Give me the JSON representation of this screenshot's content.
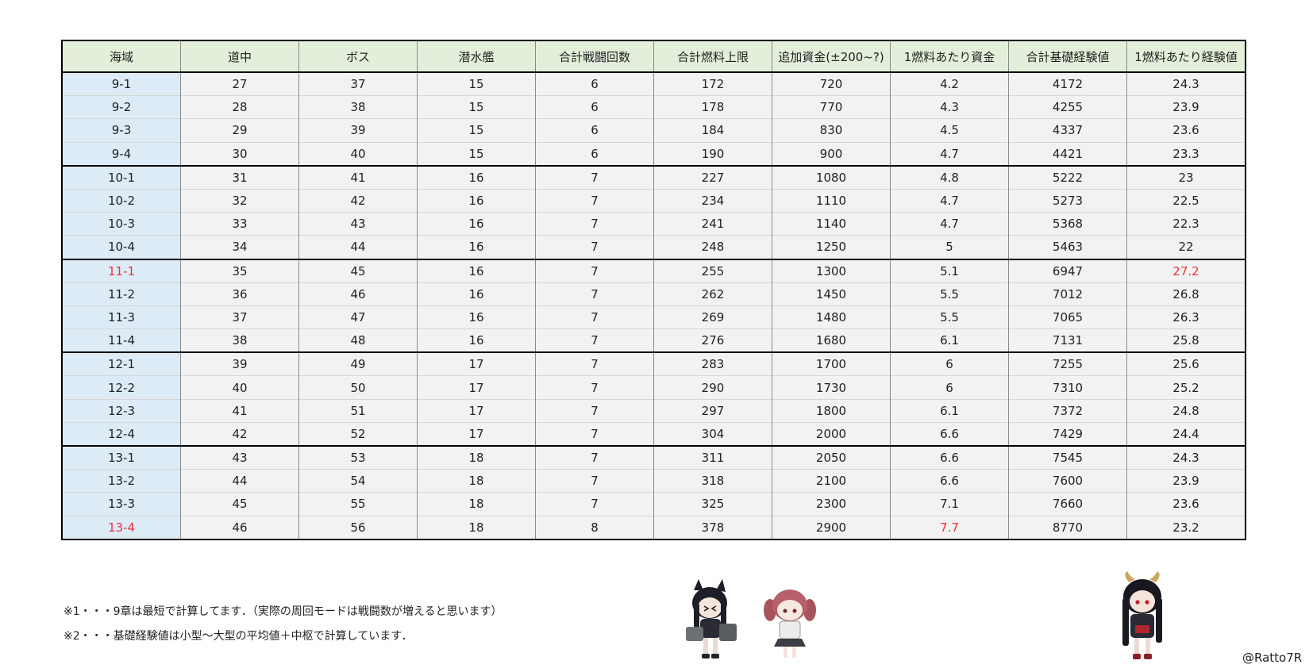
{
  "table": {
    "headers": [
      "海域",
      "道中",
      "ボス",
      "潜水艦",
      "合計戦闘回数",
      "合計燃料上限",
      "追加資金(±200~?)",
      "1燃料あたり資金",
      "合計基礎経験値",
      "1燃料あたり経験値"
    ],
    "rows": [
      [
        "9-1",
        "27",
        "37",
        "15",
        "6",
        "172",
        "720",
        "4.2",
        "4172",
        "24.3"
      ],
      [
        "9-2",
        "28",
        "38",
        "15",
        "6",
        "178",
        "770",
        "4.3",
        "4255",
        "23.9"
      ],
      [
        "9-3",
        "29",
        "39",
        "15",
        "6",
        "184",
        "830",
        "4.5",
        "4337",
        "23.6"
      ],
      [
        "9-4",
        "30",
        "40",
        "15",
        "6",
        "190",
        "900",
        "4.7",
        "4421",
        "23.3"
      ],
      [
        "10-1",
        "31",
        "41",
        "16",
        "7",
        "227",
        "1080",
        "4.8",
        "5222",
        "23"
      ],
      [
        "10-2",
        "32",
        "42",
        "16",
        "7",
        "234",
        "1110",
        "4.7",
        "5273",
        "22.5"
      ],
      [
        "10-3",
        "33",
        "43",
        "16",
        "7",
        "241",
        "1140",
        "4.7",
        "5368",
        "22.3"
      ],
      [
        "10-4",
        "34",
        "44",
        "16",
        "7",
        "248",
        "1250",
        "5",
        "5463",
        "22"
      ],
      [
        "11-1",
        "35",
        "45",
        "16",
        "7",
        "255",
        "1300",
        "5.1",
        "6947",
        "27.2"
      ],
      [
        "11-2",
        "36",
        "46",
        "16",
        "7",
        "262",
        "1450",
        "5.5",
        "7012",
        "26.8"
      ],
      [
        "11-3",
        "37",
        "47",
        "16",
        "7",
        "269",
        "1480",
        "5.5",
        "7065",
        "26.3"
      ],
      [
        "11-4",
        "38",
        "48",
        "16",
        "7",
        "276",
        "1680",
        "6.1",
        "7131",
        "25.8"
      ],
      [
        "12-1",
        "39",
        "49",
        "17",
        "7",
        "283",
        "1700",
        "6",
        "7255",
        "25.6"
      ],
      [
        "12-2",
        "40",
        "50",
        "17",
        "7",
        "290",
        "1730",
        "6",
        "7310",
        "25.2"
      ],
      [
        "12-3",
        "41",
        "51",
        "17",
        "7",
        "297",
        "1800",
        "6.1",
        "7372",
        "24.8"
      ],
      [
        "12-4",
        "42",
        "52",
        "17",
        "7",
        "304",
        "2000",
        "6.6",
        "7429",
        "24.4"
      ],
      [
        "13-1",
        "43",
        "53",
        "18",
        "7",
        "311",
        "2050",
        "6.6",
        "7545",
        "24.3"
      ],
      [
        "13-2",
        "44",
        "54",
        "18",
        "7",
        "318",
        "2100",
        "6.6",
        "7600",
        "23.9"
      ],
      [
        "13-3",
        "45",
        "55",
        "18",
        "7",
        "325",
        "2300",
        "7.1",
        "7660",
        "23.6"
      ],
      [
        "13-4",
        "46",
        "56",
        "18",
        "8",
        "378",
        "2900",
        "7.7",
        "8770",
        "23.2"
      ]
    ],
    "highlights": [
      [
        8,
        0
      ],
      [
        8,
        9
      ],
      [
        19,
        0
      ],
      [
        19,
        7
      ]
    ],
    "highlight_color": "#e8323c",
    "header_bg": "#e2efda",
    "area_col_bg": "#ddebf7",
    "cell_bg": "#f2f2f2"
  },
  "notes": [
    "※1・・・9章は最短で計算してます．（実際の周回モードは戦闘数が増えると思います）",
    "※2・・・基礎経験値は小型～大型の平均値＋中枢で計算しています．"
  ],
  "credit": "@Ratto7R",
  "illustrations": [
    "cat-girl-chibi-icon",
    "twin-tail-girl-chibi-icon",
    "dragon-girl-chibi-icon"
  ]
}
